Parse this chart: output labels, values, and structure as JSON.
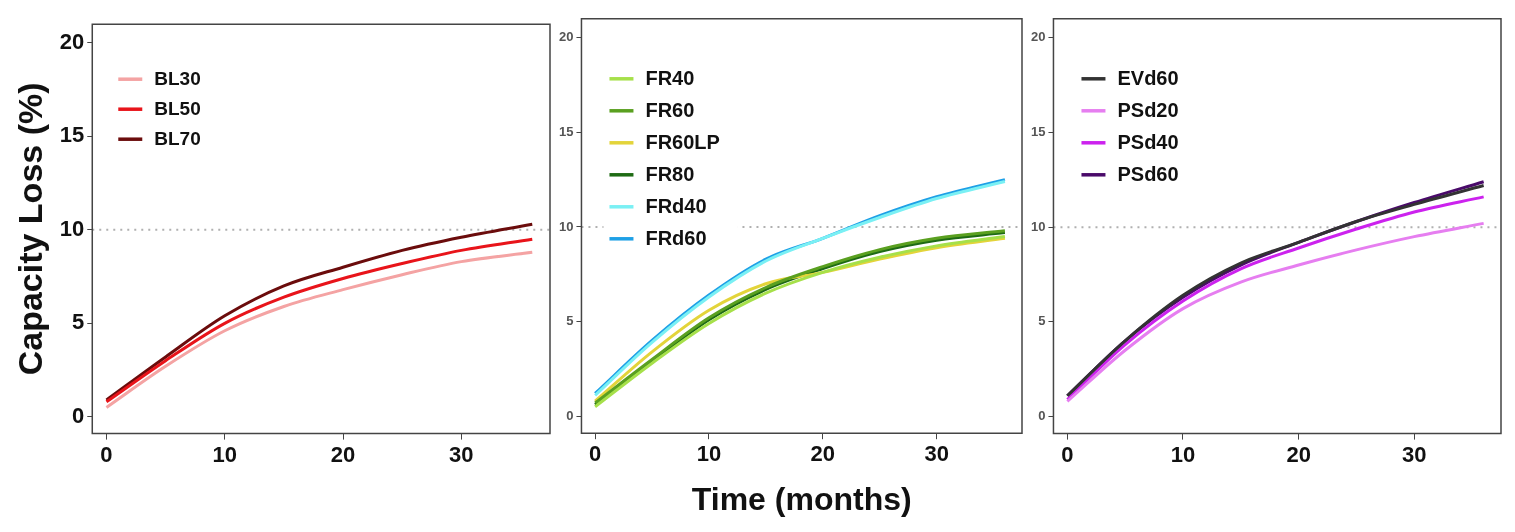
{
  "chart_data": [
    {
      "type": "line",
      "ylabel": "Capacity Loss (%)",
      "x": [
        0,
        5,
        10,
        15,
        20,
        25,
        30,
        36
      ],
      "xlim": [
        -1.2,
        37.5
      ],
      "xticks": [
        0,
        10,
        20,
        30
      ],
      "ylim": [
        -0.9,
        21
      ],
      "yticks": [
        0,
        5,
        10,
        15,
        20
      ],
      "legend": "top left",
      "grid": false,
      "line_style": "solid",
      "marker": "none",
      "ref_lines": [
        {
          "axis": "y",
          "value": 10,
          "color": "#b0b0b0",
          "line_style": "dotted"
        }
      ],
      "series": [
        {
          "name": "BL30",
          "color": "#f4a3a3",
          "values": [
            0.5,
            2.7,
            4.6,
            5.9,
            6.8,
            7.6,
            8.3,
            8.8
          ]
        },
        {
          "name": "BL50",
          "color": "#e8141a",
          "values": [
            0.8,
            3.0,
            5.0,
            6.4,
            7.4,
            8.2,
            8.9,
            9.5
          ]
        },
        {
          "name": "BL70",
          "color": "#6b0c0c",
          "values": [
            0.9,
            3.2,
            5.4,
            7.0,
            8.0,
            8.9,
            9.6,
            10.3
          ]
        }
      ]
    },
    {
      "type": "line",
      "xlabel": "Time (months)",
      "x": [
        0,
        5,
        10,
        15,
        20,
        25,
        30,
        36
      ],
      "xlim": [
        -1.2,
        37.5
      ],
      "xticks": [
        0,
        10,
        20,
        30
      ],
      "ylim": [
        -0.9,
        21
      ],
      "yticks": [
        0,
        5,
        10,
        15,
        20
      ],
      "legend": "top left",
      "grid": false,
      "line_style": "solid",
      "marker": "none",
      "ref_lines": [
        {
          "axis": "y",
          "value": 10,
          "color": "#b0b0b0",
          "line_style": "dotted"
        }
      ],
      "series": [
        {
          "name": "FR40",
          "color": "#a6e04a",
          "values": [
            0.5,
            2.8,
            4.9,
            6.5,
            7.6,
            8.4,
            9.0,
            9.5
          ]
        },
        {
          "name": "FR60",
          "color": "#5aa020",
          "values": [
            0.7,
            3.0,
            5.2,
            6.8,
            7.9,
            8.8,
            9.4,
            9.8
          ]
        },
        {
          "name": "FR60LP",
          "color": "#e3d43a",
          "values": [
            0.8,
            3.4,
            5.6,
            7.0,
            7.6,
            8.3,
            8.9,
            9.4
          ]
        },
        {
          "name": "FR80",
          "color": "#1e6b14",
          "values": [
            0.6,
            2.9,
            5.1,
            6.7,
            7.8,
            8.7,
            9.3,
            9.7
          ]
        },
        {
          "name": "FRd40",
          "color": "#7af0f4",
          "values": [
            1.1,
            3.9,
            6.3,
            8.2,
            9.4,
            10.5,
            11.5,
            12.4
          ]
        },
        {
          "name": "FRd60",
          "color": "#1ea0e6",
          "values": [
            1.2,
            4.0,
            6.4,
            8.3,
            9.4,
            10.6,
            11.6,
            12.5
          ]
        }
      ]
    },
    {
      "type": "line",
      "x": [
        0,
        5,
        10,
        15,
        20,
        25,
        30,
        36
      ],
      "xlim": [
        -1.2,
        37.5
      ],
      "xticks": [
        0,
        10,
        20,
        30
      ],
      "ylim": [
        -0.9,
        21
      ],
      "yticks": [
        0,
        5,
        10,
        15,
        20
      ],
      "legend": "top left",
      "grid": false,
      "line_style": "solid",
      "marker": "none",
      "ref_lines": [
        {
          "axis": "y",
          "value": 10,
          "color": "#b0b0b0",
          "line_style": "dotted"
        }
      ],
      "series": [
        {
          "name": "EVd60",
          "color": "#333333",
          "values": [
            1.1,
            4.0,
            6.4,
            8.1,
            9.2,
            10.3,
            11.2,
            12.2
          ]
        },
        {
          "name": "PSd20",
          "color": "#e67ef0",
          "values": [
            0.8,
            3.5,
            5.7,
            7.1,
            8.0,
            8.8,
            9.5,
            10.2
          ]
        },
        {
          "name": "PSd40",
          "color": "#cc22ee",
          "values": [
            0.9,
            3.8,
            6.1,
            7.8,
            8.9,
            9.9,
            10.8,
            11.6
          ]
        },
        {
          "name": "PSd60",
          "color": "#4a0a6a",
          "values": [
            1.1,
            4.0,
            6.3,
            8.0,
            9.2,
            10.3,
            11.3,
            12.4
          ]
        }
      ]
    }
  ]
}
